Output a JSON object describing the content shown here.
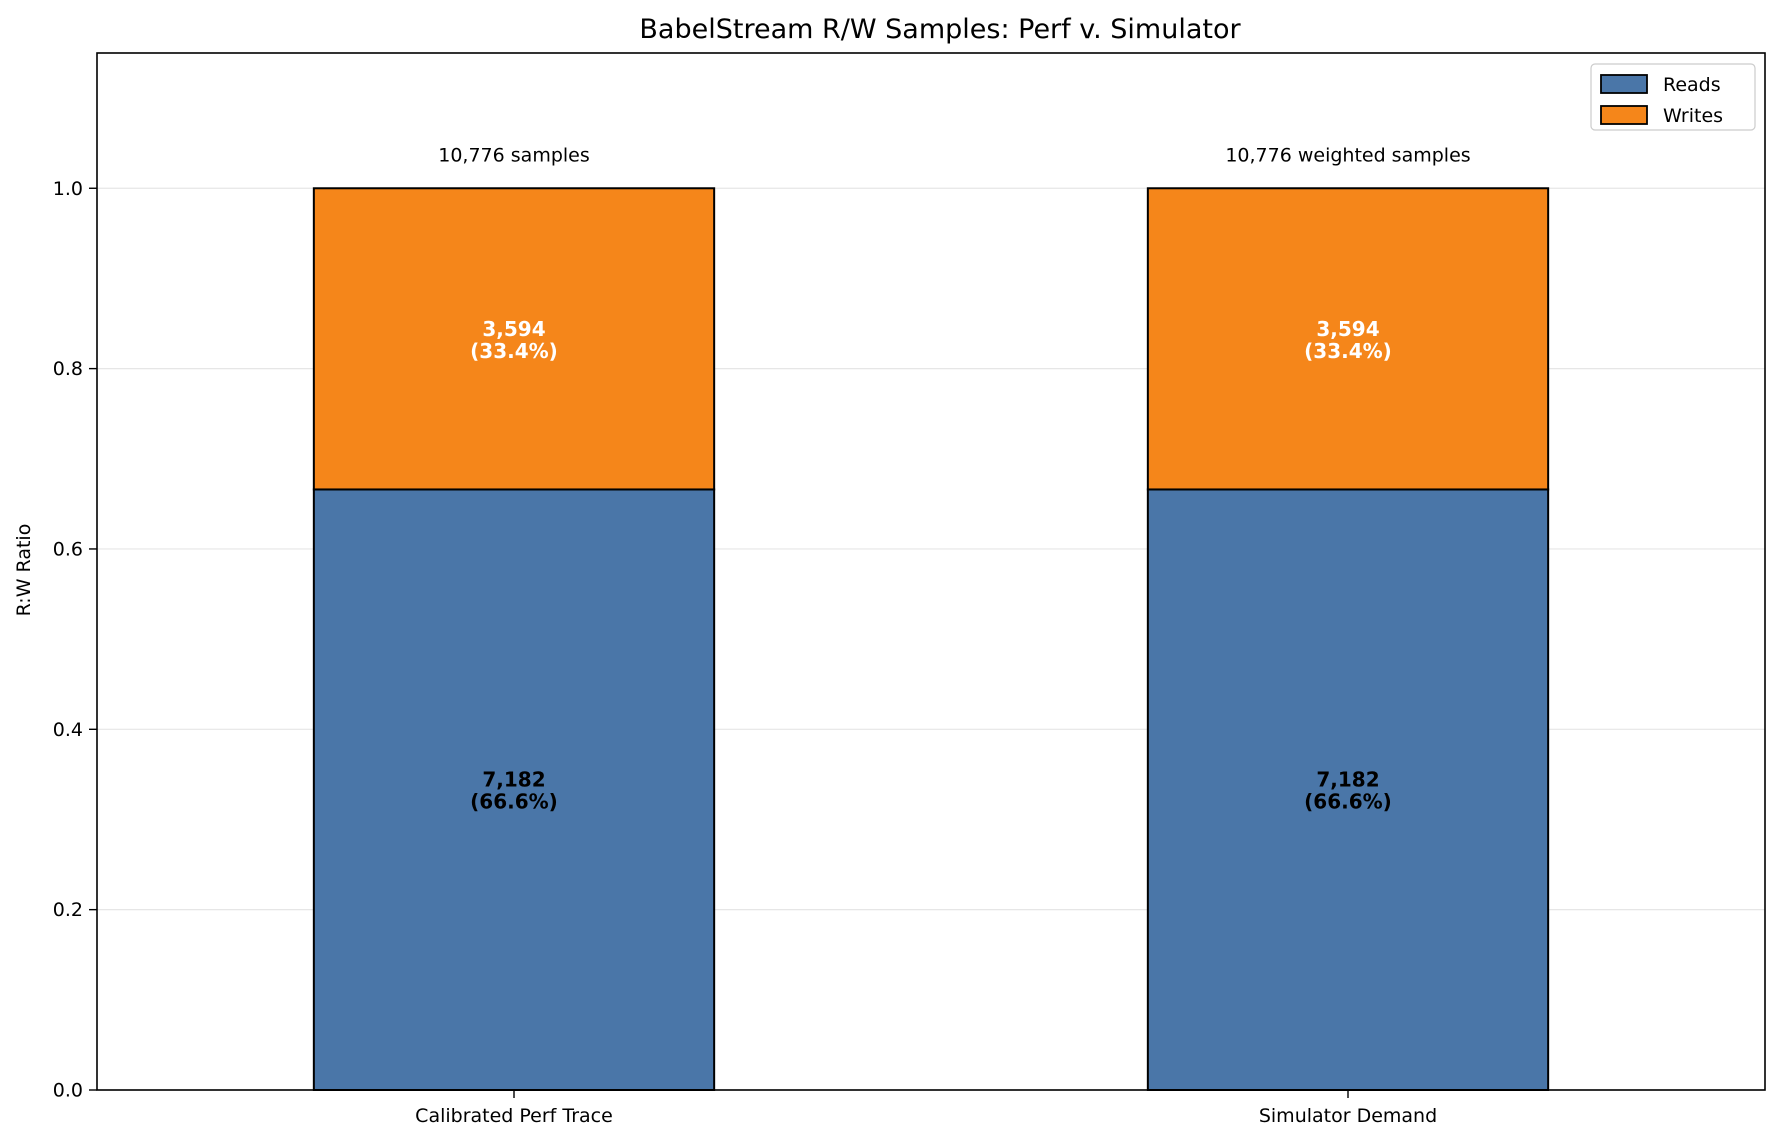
{
  "chart_data": {
    "type": "bar",
    "stacked": true,
    "title": "BabelStream R/W Samples: Perf v. Simulator",
    "xlabel": "",
    "ylabel": "R:W Ratio",
    "ylim": [
      0,
      1.15
    ],
    "yticks": [
      0.0,
      0.2,
      0.4,
      0.6,
      0.8,
      1.0
    ],
    "ytick_labels": [
      "0.0",
      "0.2",
      "0.4",
      "0.6",
      "0.8",
      "1.0"
    ],
    "grid": "horizontal",
    "legend_position": "top-right",
    "categories": [
      "Calibrated Perf Trace",
      "Simulator Demand"
    ],
    "series": [
      {
        "name": "Reads",
        "color": "#4a76a8",
        "values": [
          0.666,
          0.666
        ],
        "labels": [
          {
            "count": "7,182",
            "pct": "(66.6%)"
          },
          {
            "count": "7,182",
            "pct": "(66.6%)"
          }
        ],
        "label_color": "#000000"
      },
      {
        "name": "Writes",
        "color": "#f5861a",
        "values": [
          0.334,
          0.334
        ],
        "labels": [
          {
            "count": "3,594",
            "pct": "(33.4%)"
          },
          {
            "count": "3,594",
            "pct": "(33.4%)"
          }
        ],
        "label_color": "#ffffff"
      }
    ],
    "top_annotations": [
      "10,776 samples",
      "10,776 weighted samples"
    ]
  }
}
